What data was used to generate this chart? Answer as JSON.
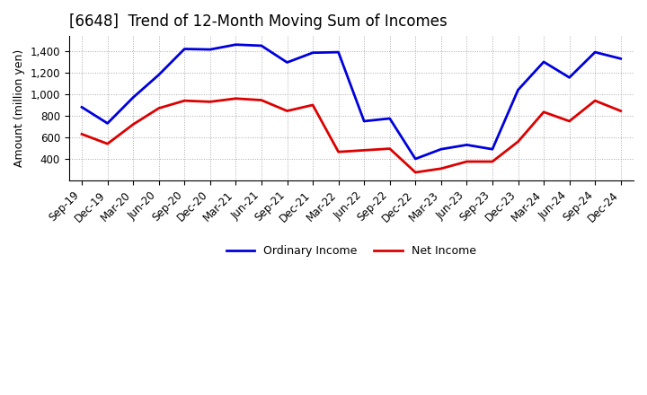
{
  "title": "[6648]  Trend of 12-Month Moving Sum of Incomes",
  "ylabel": "Amount (million yen)",
  "background_color": "#ffffff",
  "grid_color": "#aaaaaa",
  "x_labels": [
    "Sep-19",
    "Dec-19",
    "Mar-20",
    "Jun-20",
    "Sep-20",
    "Dec-20",
    "Mar-21",
    "Jun-21",
    "Sep-21",
    "Dec-21",
    "Mar-22",
    "Jun-22",
    "Sep-22",
    "Dec-22",
    "Mar-23",
    "Jun-23",
    "Sep-23",
    "Dec-23",
    "Mar-24",
    "Jun-24",
    "Sep-24",
    "Dec-24"
  ],
  "ordinary_income": [
    880,
    730,
    970,
    1180,
    1420,
    1415,
    1460,
    1450,
    1295,
    1385,
    1390,
    750,
    775,
    400,
    490,
    530,
    490,
    1040,
    1300,
    1155,
    1390,
    1330
  ],
  "net_income": [
    630,
    540,
    720,
    870,
    940,
    930,
    960,
    945,
    845,
    900,
    465,
    480,
    495,
    275,
    310,
    375,
    375,
    560,
    835,
    750,
    940,
    845
  ],
  "ordinary_color": "#0000dd",
  "net_color": "#dd0000",
  "ylim_min": 200,
  "ylim_max": 1540,
  "yticks": [
    400,
    600,
    800,
    1000,
    1200,
    1400
  ],
  "line_width": 2.0,
  "title_fontsize": 12,
  "axis_fontsize": 9,
  "tick_fontsize": 8.5,
  "legend_fontsize": 9
}
